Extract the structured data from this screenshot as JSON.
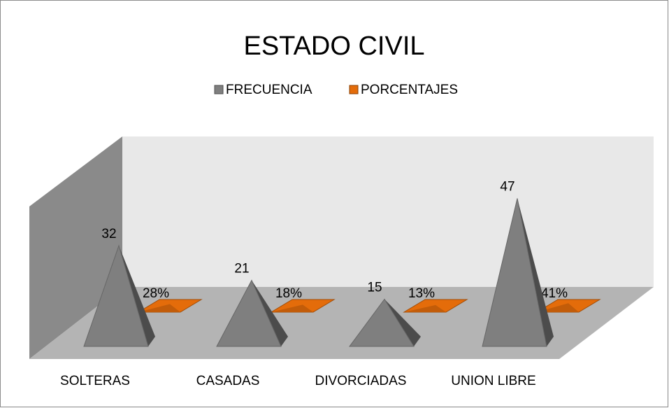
{
  "chart_data": {
    "type": "pyramid3d",
    "title": "ESTADO CIVIL",
    "categories": [
      "SOLTERAS",
      "CASADAS",
      "DIVORCIADAS",
      "UNION LIBRE"
    ],
    "series": [
      {
        "name": "FRECUENCIA",
        "color": "#7f7f7f",
        "values": [
          32,
          21,
          15,
          47
        ]
      },
      {
        "name": "PORCENTAJES",
        "color": "#e46c0a",
        "values": [
          28,
          18,
          13,
          41
        ],
        "value_labels": [
          "28%",
          "18%",
          "13%",
          "41%"
        ]
      }
    ],
    "legend": "top"
  }
}
